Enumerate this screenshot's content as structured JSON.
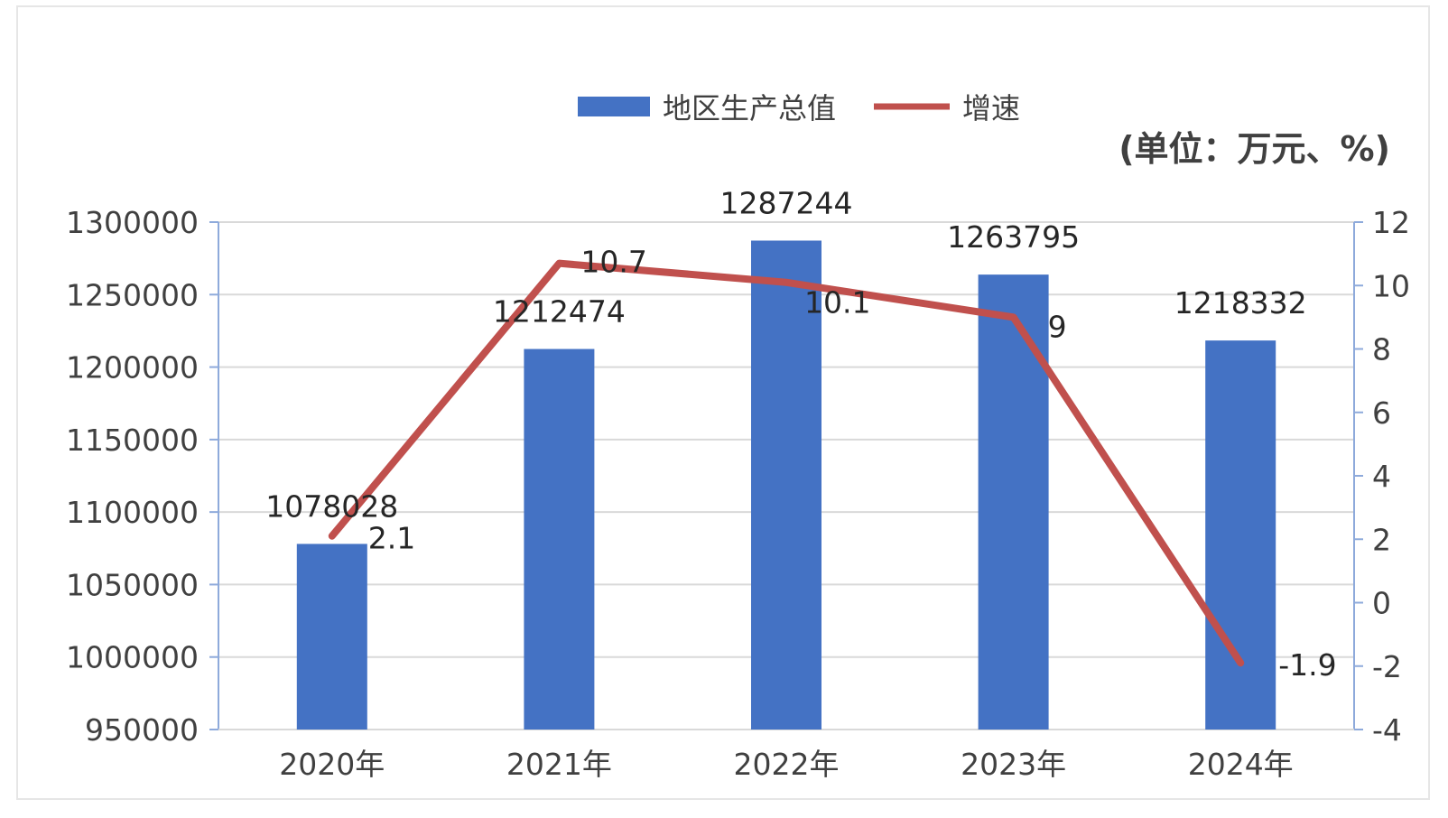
{
  "chart_data": {
    "type": "bar",
    "categories": [
      "2020年",
      "2021年",
      "2022年",
      "2023年",
      "2024年"
    ],
    "unit_label": "(单位：万元、%)",
    "series": [
      {
        "name": "地区生产总值",
        "type": "bar",
        "axis": "left",
        "color": "#4472c4",
        "values": [
          1078028,
          1212474,
          1287244,
          1263795,
          1218332
        ]
      },
      {
        "name": "增速",
        "type": "line",
        "axis": "right",
        "color": "#c0504d",
        "values": [
          2.1,
          10.7,
          10.1,
          9,
          -1.9
        ]
      }
    ],
    "y_left": {
      "min": 950000,
      "max": 1300000,
      "step": 50000,
      "ticks": [
        "950000",
        "1000000",
        "1050000",
        "1100000",
        "1150000",
        "1200000",
        "1250000",
        "1300000"
      ]
    },
    "y_right": {
      "min": -4,
      "max": 12,
      "step": 2,
      "ticks": [
        "-4",
        "-2",
        "0",
        "2",
        "4",
        "6",
        "8",
        "10",
        "12"
      ]
    },
    "grid": true,
    "legend_position": "top-center"
  }
}
